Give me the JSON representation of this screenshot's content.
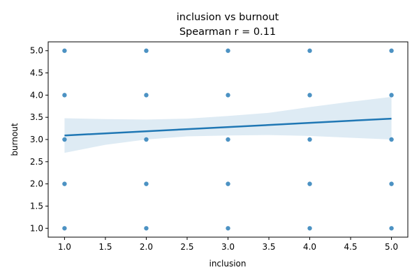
{
  "chart_data": {
    "type": "scatter",
    "title": "inclusion vs burnout",
    "subtitle": "Spearman r = 0.11",
    "xlabel": "inclusion",
    "ylabel": "burnout",
    "xlim": [
      0.8,
      5.2
    ],
    "ylim": [
      0.8,
      5.2
    ],
    "xticks": [
      "1.0",
      "1.5",
      "2.0",
      "2.5",
      "3.0",
      "3.5",
      "4.0",
      "4.5",
      "5.0"
    ],
    "yticks": [
      "1.0",
      "1.5",
      "2.0",
      "2.5",
      "3.0",
      "3.5",
      "4.0",
      "4.5",
      "5.0"
    ],
    "grid": false,
    "colors": {
      "points": "#1f77b4",
      "band": "#1f77b4"
    },
    "points": [
      {
        "x": 1,
        "y": 5
      },
      {
        "x": 1,
        "y": 4
      },
      {
        "x": 1,
        "y": 3
      },
      {
        "x": 1,
        "y": 2
      },
      {
        "x": 1,
        "y": 1
      },
      {
        "x": 2,
        "y": 5
      },
      {
        "x": 2,
        "y": 4
      },
      {
        "x": 2,
        "y": 3
      },
      {
        "x": 2,
        "y": 2
      },
      {
        "x": 2,
        "y": 1
      },
      {
        "x": 3,
        "y": 5
      },
      {
        "x": 3,
        "y": 4
      },
      {
        "x": 3,
        "y": 3
      },
      {
        "x": 3,
        "y": 2
      },
      {
        "x": 3,
        "y": 1
      },
      {
        "x": 4,
        "y": 5
      },
      {
        "x": 4,
        "y": 4
      },
      {
        "x": 4,
        "y": 3
      },
      {
        "x": 4,
        "y": 2
      },
      {
        "x": 4,
        "y": 1
      },
      {
        "x": 5,
        "y": 5
      },
      {
        "x": 5,
        "y": 4
      },
      {
        "x": 5,
        "y": 3
      },
      {
        "x": 5,
        "y": 2
      },
      {
        "x": 5,
        "y": 1
      }
    ],
    "regression": {
      "x": [
        1,
        5
      ],
      "y": [
        3.09,
        3.47
      ],
      "ci_band": {
        "x": [
          1,
          1.5,
          2,
          2.5,
          3,
          3.5,
          4,
          4.5,
          5
        ],
        "lower": [
          2.7,
          2.88,
          3.0,
          3.07,
          3.09,
          3.1,
          3.08,
          3.04,
          3.0
        ],
        "upper": [
          3.48,
          3.46,
          3.45,
          3.47,
          3.53,
          3.6,
          3.73,
          3.85,
          3.96
        ]
      }
    }
  }
}
